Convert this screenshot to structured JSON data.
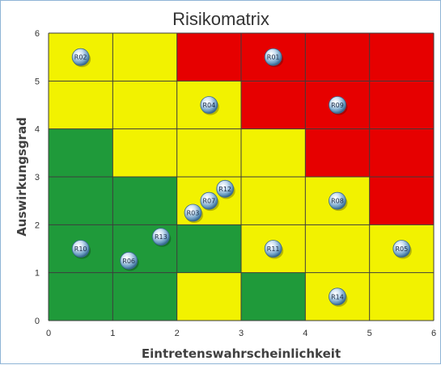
{
  "chart_data": {
    "type": "scatter",
    "title": "Risikomatrix",
    "xlabel": "Eintretenswahrscheinlichkeit",
    "ylabel": "Auswirkungsgrad",
    "xlim": [
      0,
      6
    ],
    "ylim": [
      0,
      6
    ],
    "x_ticks": [
      "0",
      "1",
      "2",
      "3",
      "4",
      "5",
      "6"
    ],
    "y_ticks": [
      "0",
      "1",
      "2",
      "3",
      "4",
      "5",
      "6"
    ],
    "grid": true,
    "legend": "none",
    "colors": {
      "green": "#1f9a3a",
      "yellow": "#f2f200",
      "red": "#e60000"
    },
    "cell_colors": [
      [
        "green",
        "green",
        "yellow",
        "green",
        "yellow",
        "yellow"
      ],
      [
        "green",
        "green",
        "green",
        "yellow",
        "yellow",
        "yellow"
      ],
      [
        "green",
        "green",
        "yellow",
        "yellow",
        "yellow",
        "red"
      ],
      [
        "green",
        "yellow",
        "yellow",
        "yellow",
        "red",
        "red"
      ],
      [
        "yellow",
        "yellow",
        "yellow",
        "red",
        "red",
        "red"
      ],
      [
        "yellow",
        "yellow",
        "red",
        "red",
        "red",
        "red"
      ]
    ],
    "points": [
      {
        "label": "R01",
        "x": 3.5,
        "y": 5.5
      },
      {
        "label": "R02",
        "x": 0.5,
        "y": 5.5
      },
      {
        "label": "R03",
        "x": 2.25,
        "y": 2.25
      },
      {
        "label": "R04",
        "x": 2.5,
        "y": 4.5
      },
      {
        "label": "R05",
        "x": 5.5,
        "y": 1.5
      },
      {
        "label": "R06",
        "x": 1.25,
        "y": 1.25
      },
      {
        "label": "R07",
        "x": 2.5,
        "y": 2.5
      },
      {
        "label": "R08",
        "x": 4.5,
        "y": 2.5
      },
      {
        "label": "R09",
        "x": 4.5,
        "y": 4.5
      },
      {
        "label": "R10",
        "x": 0.5,
        "y": 1.5
      },
      {
        "label": "R11",
        "x": 3.5,
        "y": 1.5
      },
      {
        "label": "R12",
        "x": 2.75,
        "y": 2.75
      },
      {
        "label": "R13",
        "x": 1.75,
        "y": 1.75
      },
      {
        "label": "R14",
        "x": 4.5,
        "y": 0.5
      }
    ]
  }
}
